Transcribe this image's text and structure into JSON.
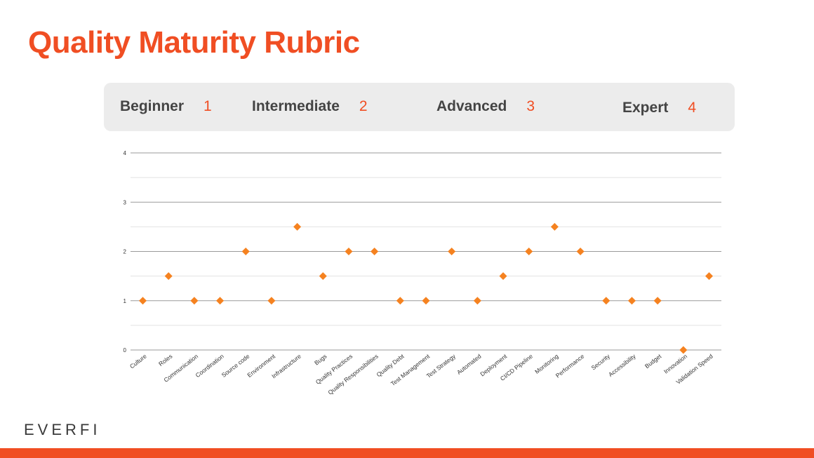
{
  "title": "Quality Maturity Rubric",
  "colors": {
    "accent": "#f04e23",
    "marker": "#f58220",
    "grid_major": "#9a9a9a",
    "grid_minor": "#e2e2e2"
  },
  "levels": [
    {
      "name": "Beginner",
      "number": "1"
    },
    {
      "name": "Intermediate",
      "number": "2"
    },
    {
      "name": "Advanced",
      "number": "3"
    },
    {
      "name": "Expert",
      "number": "4"
    }
  ],
  "logo": {
    "text": "EVERFI"
  },
  "chart_data": {
    "type": "scatter",
    "marker": "diamond",
    "categories": [
      "Culture",
      "Roles",
      "Communication",
      "Coordination",
      "Source code",
      "Environment",
      "Infrastructure",
      "Bugs",
      "Quality Practices",
      "Quality Responsibilities",
      "Quality Debt",
      "Test Management",
      "Test Strategy",
      "Automated",
      "Deployment",
      "CI/CD Pipeline",
      "Monitoring",
      "Performance",
      "Security",
      "Accessibility",
      "Budget",
      "Innovation",
      "Validation Speed"
    ],
    "values": [
      1,
      1.5,
      1,
      1,
      2,
      1,
      2.5,
      1.5,
      2,
      2,
      1,
      1,
      2,
      1,
      1.5,
      2,
      2.5,
      2,
      1,
      1,
      1,
      0,
      1.5
    ],
    "ylim": [
      0,
      4
    ],
    "yticks": [
      "0",
      "1",
      "2",
      "3",
      "4"
    ],
    "grid": true,
    "legend": "none",
    "title": "",
    "xlabel": "",
    "ylabel": ""
  }
}
